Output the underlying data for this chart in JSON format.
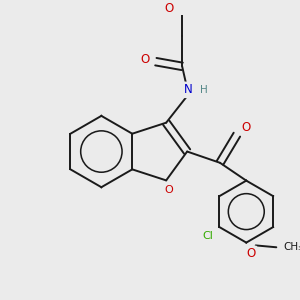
{
  "background_color": "#ebebeb",
  "bond_color": "#1a1a1a",
  "atom_colors": {
    "O": "#cc0000",
    "N": "#0000cc",
    "Cl": "#33aa00",
    "H": "#558888",
    "C": "#1a1a1a"
  },
  "figsize": [
    3.0,
    3.0
  ],
  "dpi": 100
}
